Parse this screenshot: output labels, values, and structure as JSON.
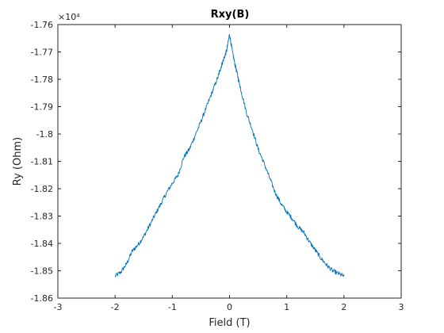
{
  "chart_data": {
    "type": "line",
    "title": "Rxy(B)",
    "xlabel": "Field (T)",
    "ylabel": "Ry (Ohm)",
    "y_exponent": "×10⁴",
    "xlim": [
      -3,
      3
    ],
    "ylim": [
      -1.86,
      -1.76
    ],
    "x_ticks": [
      -3,
      -2,
      -1,
      0,
      1,
      2,
      3
    ],
    "x_tick_labels": [
      "-3",
      "-2",
      "-1",
      "0",
      "1",
      "2",
      "3"
    ],
    "y_ticks": [
      -1.76,
      -1.77,
      -1.78,
      -1.79,
      -1.8,
      -1.81,
      -1.82,
      -1.83,
      -1.84,
      -1.85,
      -1.86
    ],
    "y_tick_labels": [
      "-1.76",
      "-1.77",
      "-1.78",
      "-1.79",
      "-1.8",
      "-1.81",
      "-1.82",
      "-1.83",
      "-1.84",
      "-1.85",
      "-1.86"
    ],
    "grid": false,
    "box": true,
    "line_color": "#0072BD",
    "series": [
      {
        "x": [
          -2.0,
          -1.9,
          -1.8,
          -1.7,
          -1.6,
          -1.5,
          -1.4,
          -1.3,
          -1.2,
          -1.1,
          -1.0,
          -0.9,
          -0.8,
          -0.7,
          -0.6,
          -0.5,
          -0.4,
          -0.3,
          -0.2,
          -0.15,
          -0.1,
          -0.05,
          0.0,
          0.05,
          0.1,
          0.15,
          0.2,
          0.3,
          0.4,
          0.5,
          0.6,
          0.7,
          0.8,
          0.9,
          1.0,
          1.1,
          1.2,
          1.3,
          1.4,
          1.5,
          1.6,
          1.7,
          1.8,
          1.9,
          2.0
        ],
        "y": [
          -1.852,
          -1.8505,
          -1.8475,
          -1.8428,
          -1.8405,
          -1.8375,
          -1.8335,
          -1.8295,
          -1.8255,
          -1.8215,
          -1.818,
          -1.815,
          -1.8085,
          -1.8055,
          -1.8005,
          -1.7955,
          -1.79,
          -1.7845,
          -1.779,
          -1.7755,
          -1.7725,
          -1.7695,
          -1.7635,
          -1.77,
          -1.775,
          -1.7795,
          -1.784,
          -1.7925,
          -1.7985,
          -1.8055,
          -1.8105,
          -1.816,
          -1.8215,
          -1.8255,
          -1.8285,
          -1.831,
          -1.834,
          -1.836,
          -1.8395,
          -1.8425,
          -1.8455,
          -1.848,
          -1.85,
          -1.851,
          -1.852
        ]
      }
    ]
  }
}
